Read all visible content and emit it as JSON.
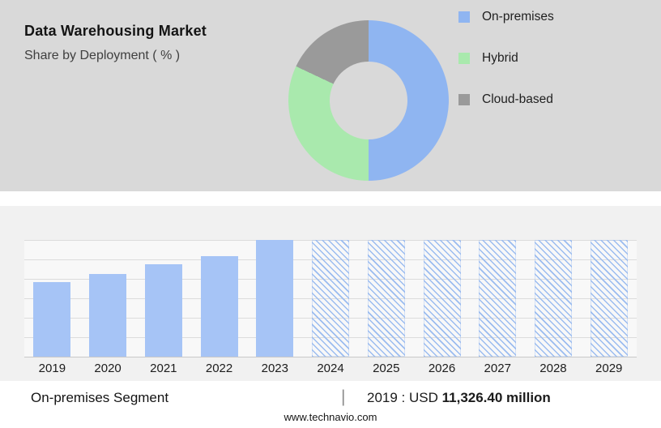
{
  "header": {
    "title": "Data Warehousing Market",
    "subtitle": "Share by Deployment ( % )"
  },
  "legend": {
    "items": [
      {
        "label": "On-premises",
        "color": "#8fb5f1"
      },
      {
        "label": "Hybrid",
        "color": "#a9e9ad"
      },
      {
        "label": "Cloud-based",
        "color": "#9a9a9a"
      }
    ]
  },
  "chart_data": [
    {
      "type": "pie",
      "title": "Data Warehousing Market - Share by Deployment ( % )",
      "labels": [
        "On-premises",
        "Hybrid",
        "Cloud-based"
      ],
      "values": [
        50,
        32,
        18
      ],
      "colors": [
        "#8fb5f1",
        "#a9e9ad",
        "#9a9a9a"
      ],
      "donut": true,
      "legend_position": "right"
    },
    {
      "type": "bar",
      "title": "On-premises Segment",
      "categories": [
        "2019",
        "2020",
        "2021",
        "2022",
        "2023",
        "2024",
        "2025",
        "2026",
        "2027",
        "2028",
        "2029"
      ],
      "values_pct": [
        64,
        71,
        79,
        86,
        100,
        100,
        100,
        100,
        100,
        100,
        100
      ],
      "forecast_from_index": 5,
      "bar_color": "#a6c4f6",
      "hatch_color": "#9bbcf0",
      "grid": true,
      "annotation": "2019 : USD 11,326.40 million"
    }
  ],
  "footer": {
    "segment_label": "On-premises Segment",
    "divider": "|",
    "year_prefix": "2019 : USD",
    "value_bold": "11,326.40 million",
    "website": "www.technavio.com"
  }
}
